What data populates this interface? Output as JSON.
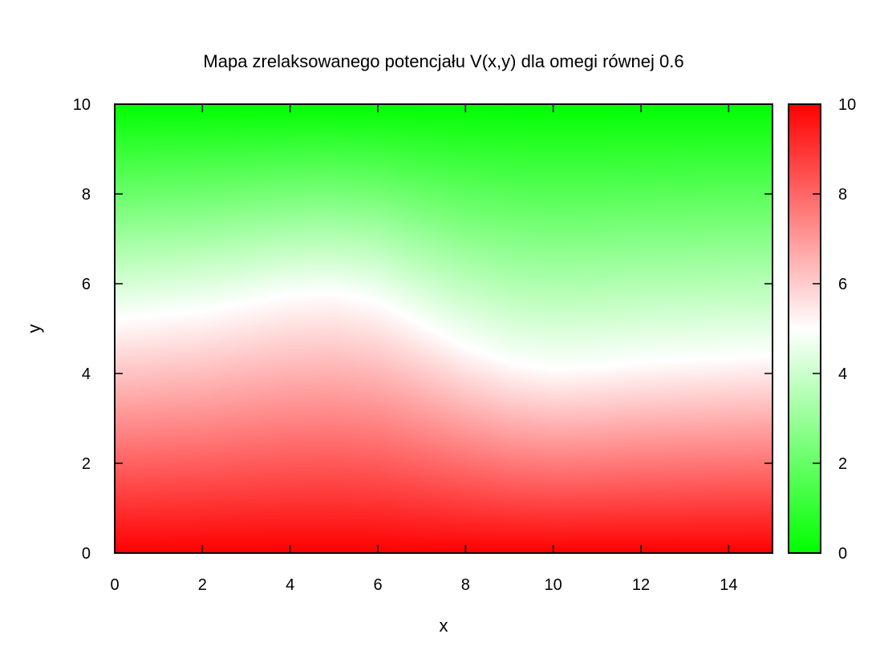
{
  "chart_data": {
    "type": "heatmap",
    "title": "Mapa zrelaksowanego potencjału V(x,y) dla omegi równej 0.6",
    "xlabel": "x",
    "ylabel": "y",
    "xlim": [
      0,
      15
    ],
    "ylim": [
      0,
      10
    ],
    "x_ticks": [
      "0",
      "2",
      "4",
      "6",
      "8",
      "10",
      "12",
      "14"
    ],
    "y_ticks": [
      "0",
      "2",
      "4",
      "6",
      "8",
      "10"
    ],
    "colorbar": {
      "range": [
        0,
        10
      ],
      "ticks": [
        "0",
        "2",
        "4",
        "6",
        "8",
        "10"
      ],
      "low_color": "#00ff00",
      "mid_color": "#ffffff",
      "high_color": "#ff0000"
    },
    "isoline_5": {
      "description": "position of V=5 (white band) along x",
      "x": [
        0,
        2,
        4,
        5,
        6,
        7,
        8,
        9,
        10,
        11,
        12,
        13,
        14,
        15
      ],
      "y": [
        5.2,
        5.4,
        5.75,
        5.8,
        5.6,
        5.1,
        4.6,
        4.25,
        4.1,
        4.15,
        4.25,
        4.3,
        4.35,
        4.4
      ]
    },
    "grid": false,
    "legend": "none"
  }
}
